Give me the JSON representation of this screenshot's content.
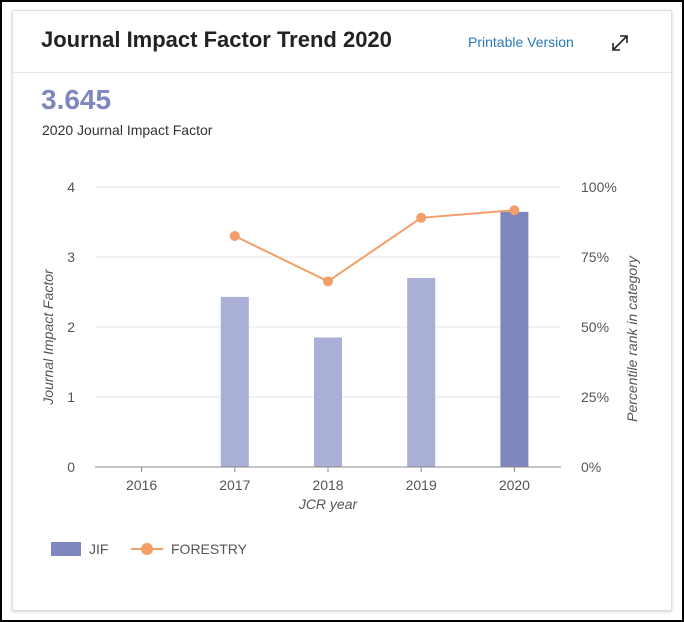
{
  "card": {
    "title": "Journal Impact Factor Trend 2020",
    "printable_label": "Printable Version",
    "expand_icon": "expand-arrows-icon"
  },
  "summary": {
    "value": "3.645",
    "label": "2020 Journal Impact Factor"
  },
  "colors": {
    "bar": "#a9afd6",
    "bar_highlight": "#7e87be",
    "line": "#f39e69",
    "grid": "#e6e6e6",
    "axis_text": "#555555"
  },
  "chart_data": {
    "type": "bar",
    "categories": [
      "2016",
      "2017",
      "2018",
      "2019",
      "2020"
    ],
    "series": [
      {
        "name": "JIF",
        "type": "bar",
        "axis": "left",
        "values": [
          null,
          2.43,
          1.85,
          2.7,
          3.645
        ]
      },
      {
        "name": "FORESTRY",
        "type": "line",
        "axis": "right",
        "values": [
          null,
          82.5,
          66.3,
          89,
          91.7
        ]
      }
    ],
    "xlabel": "JCR year",
    "ylabel": "Journal Impact Factor",
    "y2label": "Percentile rank in category",
    "ylim": [
      0,
      4
    ],
    "y2lim": [
      0,
      100
    ],
    "yticks": [
      "0",
      "1",
      "2",
      "3",
      "4"
    ],
    "y2ticks": [
      "0%",
      "25%",
      "50%",
      "75%",
      "100%"
    ],
    "highlight_category": "2020",
    "grid": true,
    "legend_position": "bottom-left"
  }
}
